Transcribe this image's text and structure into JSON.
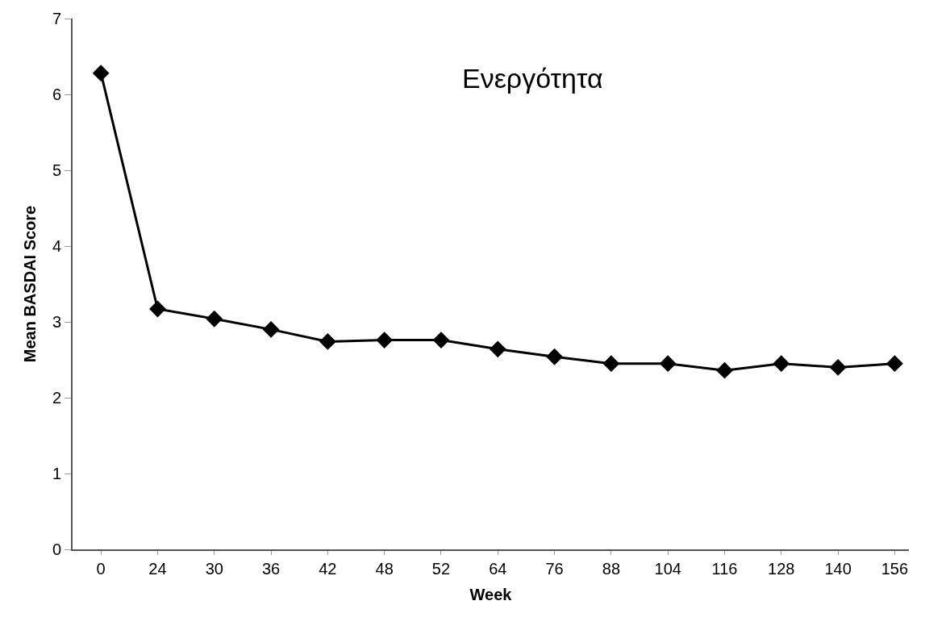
{
  "chart_data": {
    "type": "line",
    "xlabel": "Week",
    "ylabel": "Mean BASDAI Score",
    "annotations": [
      "Ενεργότητα"
    ],
    "categories": [
      "0",
      "24",
      "30",
      "36",
      "42",
      "48",
      "52",
      "64",
      "76",
      "88",
      "104",
      "116",
      "128",
      "140",
      "156"
    ],
    "series": [
      {
        "color": "#000000",
        "values": [
          6.28,
          3.17,
          3.04,
          2.9,
          2.74,
          2.76,
          2.76,
          2.64,
          2.54,
          2.45,
          2.45,
          2.36,
          2.45,
          2.4,
          2.45
        ]
      }
    ],
    "ylim": [
      0,
      7
    ],
    "yticks": [
      0,
      1,
      2,
      3,
      4,
      5,
      6,
      7
    ],
    "marker": "diamond",
    "line_style": "solid"
  }
}
